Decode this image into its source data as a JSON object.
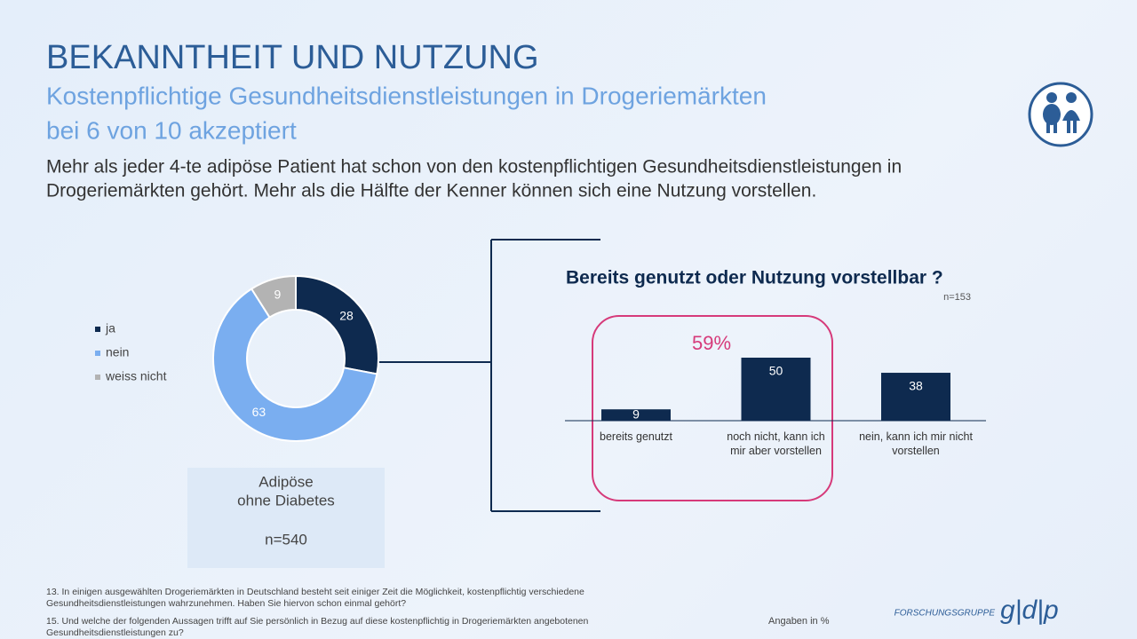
{
  "header": {
    "title": "BEKANNTHEIT UND NUTZUNG",
    "subtitle_lines": [
      "Kostenpflichtige Gesundheitsdienstleistungen in Drogeriemärkten",
      "bei 6 von 10 akzeptiert"
    ],
    "lead_lines": [
      "Mehr als jeder 4-te adipöse Patient hat schon von den kostenpflichtigen Gesundheitsdienstleistungen in",
      "Drogeriemärkten gehört. Mehr als die Hälfte der Kenner können sich eine Nutzung vorstellen."
    ]
  },
  "chart_data": [
    {
      "type": "donut",
      "categories": [
        "ja",
        "nein",
        "weiss nicht"
      ],
      "values": [
        28,
        63,
        9
      ],
      "colors": [
        "#0e2a4f",
        "#7aaef0",
        "#b3b3b3"
      ],
      "caption_lines": [
        "Adipöse",
        "ohne Diabetes"
      ],
      "sample": "n=540"
    },
    {
      "type": "bar",
      "title": "Bereits genutzt oder Nutzung vorstellbar ?",
      "sample": "n=153",
      "categories": [
        "bereits genutzt",
        "noch nicht, kann ich mir aber vorstellen",
        "nein, kann ich mir nicht vorstellen"
      ],
      "values": [
        9,
        50,
        38
      ],
      "color": "#0e2a4f",
      "annotation": "59%"
    }
  ],
  "footer": {
    "notes": [
      "13. In einigen ausgewählten Drogeriemärkten in Deutschland besteht seit einiger Zeit die Möglichkeit, kostenpflichtig verschiedene",
      "Gesundheitsdienstleistungen wahrzunehmen.  Haben Sie hiervon schon einmal gehört?",
      "15. Und welche der folgenden Aussagen trifft auf Sie persönlich in Bezug auf diese kostenpflichtig in Drogeriemärkten angebotenen",
      "Gesundheitsdienstleistungen zu?"
    ],
    "unit_note": "Angaben in %",
    "logo_text": "FORSCHUNGSGRUPPE",
    "logo_mark": "g|d|p"
  }
}
